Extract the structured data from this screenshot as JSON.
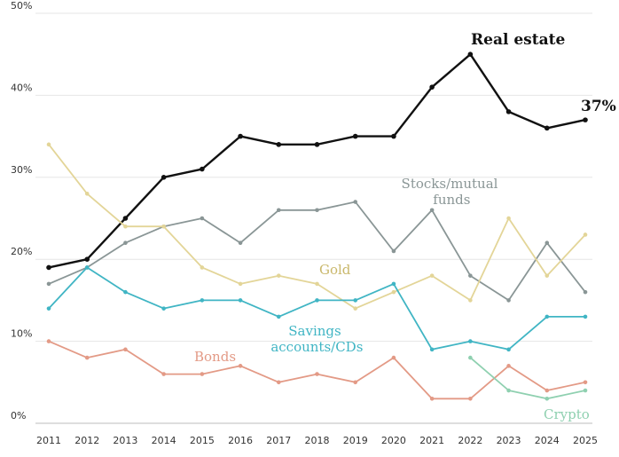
{
  "chart_data": {
    "type": "line",
    "x": [
      2011,
      2012,
      2013,
      2014,
      2015,
      2016,
      2017,
      2018,
      2019,
      2020,
      2021,
      2022,
      2023,
      2024,
      2025
    ],
    "ylim": [
      0,
      50
    ],
    "y_ticks": [
      0,
      10,
      20,
      30,
      40,
      50
    ],
    "y_tick_labels": [
      "0%",
      "10%",
      "20%",
      "30%",
      "40%",
      "50%"
    ],
    "grid": "horizontal",
    "series": [
      {
        "name": "Real estate",
        "color": "#111111",
        "values": [
          19,
          20,
          25,
          30,
          31,
          35,
          34,
          34,
          35,
          35,
          41,
          45,
          38,
          36,
          37
        ]
      },
      {
        "name": "Stocks/mutual funds",
        "color": "#8a9696",
        "values": [
          17,
          19,
          22,
          24,
          25,
          22,
          26,
          26,
          27,
          21,
          26,
          18,
          15,
          22,
          16
        ]
      },
      {
        "name": "Gold",
        "color": "#e3d598",
        "values": [
          34,
          28,
          24,
          24,
          19,
          17,
          18,
          17,
          14,
          16,
          18,
          15,
          25,
          18,
          23
        ]
      },
      {
        "name": "Savings accounts/CDs",
        "color": "#40b5c4",
        "values": [
          14,
          19,
          16,
          14,
          15,
          15,
          13,
          15,
          15,
          17,
          9,
          10,
          9,
          13,
          13
        ]
      },
      {
        "name": "Bonds",
        "color": "#e39a86",
        "values": [
          10,
          8,
          9,
          6,
          6,
          7,
          5,
          6,
          5,
          8,
          3,
          3,
          7,
          4,
          5
        ]
      },
      {
        "name": "Crypto",
        "color": "#8fd0b0",
        "values": [
          null,
          null,
          null,
          null,
          null,
          null,
          null,
          null,
          null,
          null,
          null,
          8,
          4,
          3,
          4
        ]
      }
    ],
    "annotations": {
      "real_estate_end_value": "37%"
    }
  }
}
